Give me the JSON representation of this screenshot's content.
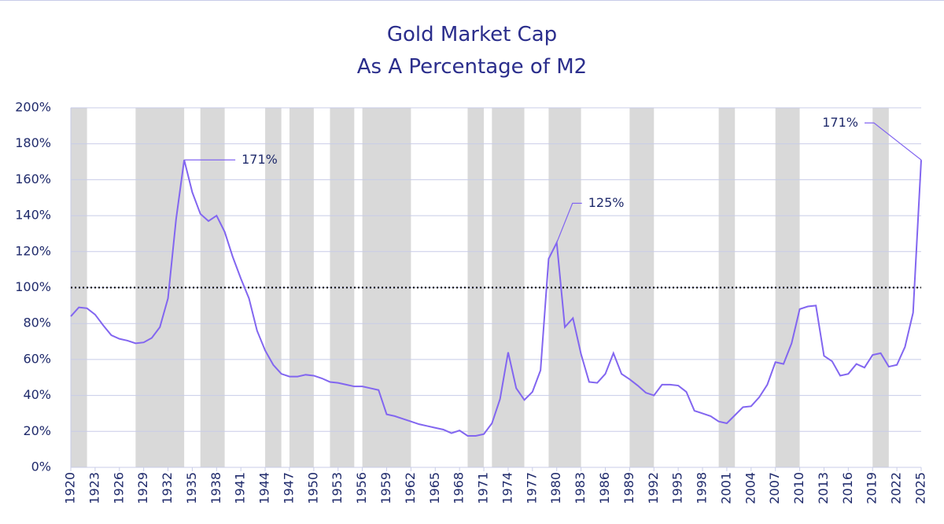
{
  "chart_data": {
    "type": "line",
    "title": "Gold Market Cap",
    "subtitle": "As A Percentage of M2",
    "x": [
      1920,
      1921,
      1922,
      1923,
      1924,
      1925,
      1926,
      1927,
      1928,
      1929,
      1930,
      1931,
      1932,
      1933,
      1934,
      1935,
      1936,
      1937,
      1938,
      1939,
      1940,
      1941,
      1942,
      1943,
      1944,
      1945,
      1946,
      1947,
      1948,
      1949,
      1950,
      1951,
      1952,
      1953,
      1954,
      1955,
      1956,
      1957,
      1958,
      1959,
      1960,
      1961,
      1962,
      1963,
      1964,
      1965,
      1966,
      1967,
      1968,
      1969,
      1970,
      1971,
      1972,
      1973,
      1974,
      1975,
      1976,
      1977,
      1978,
      1979,
      1980,
      1981,
      1982,
      1983,
      1984,
      1985,
      1986,
      1987,
      1988,
      1989,
      1990,
      1991,
      1992,
      1993,
      1994,
      1995,
      1996,
      1997,
      1998,
      1999,
      2000,
      2001,
      2002,
      2003,
      2004,
      2005,
      2006,
      2007,
      2008,
      2009,
      2010,
      2011,
      2012,
      2013,
      2014,
      2015,
      2016,
      2017,
      2018,
      2019,
      2020,
      2021,
      2022,
      2023,
      2024,
      2025
    ],
    "series": [
      {
        "color": "#8266f0",
        "values": [
          84,
          89,
          88.5,
          85,
          79,
          73.5,
          71.5,
          70.5,
          69,
          69.5,
          72,
          78,
          94,
          138,
          171,
          153,
          141,
          137,
          140,
          131,
          117,
          105,
          94,
          76,
          65,
          57,
          52,
          50.5,
          50.5,
          51.5,
          51,
          49.5,
          47.5,
          47,
          46,
          45,
          45,
          44,
          43,
          29.5,
          28.5,
          27,
          25.5,
          24,
          23,
          22,
          21,
          19,
          20.5,
          17.5,
          17.5,
          18.5,
          24.5,
          38,
          64,
          44,
          37.5,
          42,
          54,
          116,
          125,
          78,
          83,
          63,
          47.5,
          47,
          52,
          63.5,
          52,
          49,
          45.5,
          41.5,
          40,
          46,
          46,
          45.5,
          42,
          31.5,
          30,
          28.5,
          25.5,
          24.5,
          29,
          33.5,
          34,
          39,
          46,
          58.5,
          57.5,
          69,
          88,
          89.5,
          90,
          62,
          59,
          51,
          52,
          57.5,
          55.5,
          62.5,
          63.5,
          56,
          57,
          67,
          86,
          171
        ]
      }
    ],
    "xlim": [
      1920,
      2025
    ],
    "xticks": [
      1920,
      1923,
      1926,
      1929,
      1932,
      1935,
      1938,
      1941,
      1944,
      1947,
      1950,
      1953,
      1956,
      1959,
      1962,
      1965,
      1968,
      1971,
      1974,
      1977,
      1980,
      1983,
      1986,
      1989,
      1992,
      1995,
      1998,
      2001,
      2004,
      2007,
      2010,
      2013,
      2016,
      2019,
      2022,
      2025
    ],
    "ylim": [
      0,
      200
    ],
    "yticks": [
      {
        "value": 0,
        "label": "0%"
      },
      {
        "value": 20,
        "label": "20%"
      },
      {
        "value": 40,
        "label": "40%"
      },
      {
        "value": 60,
        "label": "60%"
      },
      {
        "value": 80,
        "label": "80%"
      },
      {
        "value": 100,
        "label": "100%"
      },
      {
        "value": 120,
        "label": "120%"
      },
      {
        "value": 140,
        "label": "140%"
      },
      {
        "value": 160,
        "label": "160%"
      },
      {
        "value": 180,
        "label": "180%"
      },
      {
        "value": 200,
        "label": "200%"
      }
    ],
    "grid": true,
    "reference_line": 100,
    "shaded_periods": [
      [
        1920,
        1922
      ],
      [
        1928,
        1934
      ],
      [
        1936,
        1939
      ],
      [
        1944,
        1946
      ],
      [
        1947,
        1950
      ],
      [
        1952,
        1955
      ],
      [
        1956,
        1962
      ],
      [
        1969,
        1971
      ],
      [
        1972,
        1976
      ],
      [
        1979,
        1983
      ],
      [
        1989,
        1992
      ],
      [
        2000,
        2002
      ],
      [
        2007,
        2010
      ],
      [
        2019,
        2021
      ]
    ],
    "annotations": [
      {
        "x": 1934,
        "y": 171,
        "label": "171%"
      },
      {
        "x": 1980,
        "y": 125,
        "label": "125%"
      },
      {
        "x": 2025,
        "y": 171,
        "label": "171%"
      }
    ]
  }
}
